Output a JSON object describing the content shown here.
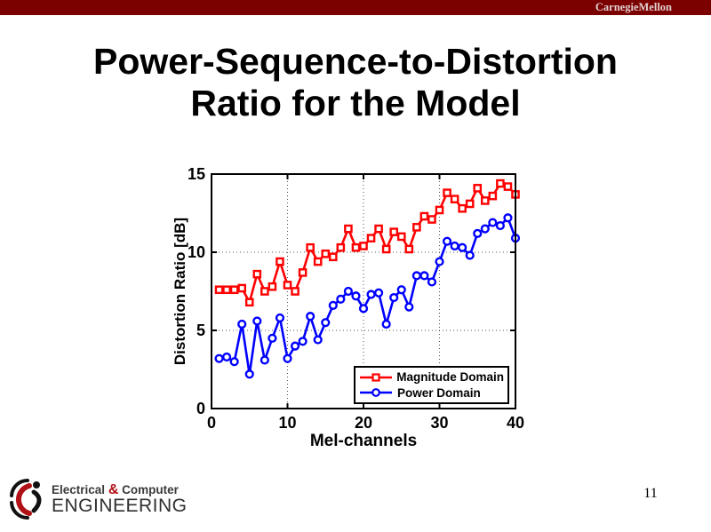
{
  "header": {
    "brand": "CarnegieMellon",
    "bar_color": "#7b0000"
  },
  "title": {
    "line1": "Power-Sequence-to-Distortion",
    "line2": "Ratio for the Model"
  },
  "footer": {
    "page_number": "11",
    "logo": {
      "word1": "Electrical",
      "amp": "&",
      "amp_color": "#b01116",
      "word2": "Computer",
      "line2": "ENGINEERING"
    }
  },
  "chart_data": {
    "type": "line",
    "title": "",
    "xlabel": "Mel-channels",
    "ylabel": "Distortion Ratio [dB]",
    "xlim": [
      0,
      40
    ],
    "ylim": [
      0,
      15
    ],
    "xticks": [
      0,
      10,
      20,
      30,
      40
    ],
    "yticks": [
      0,
      5,
      10,
      15
    ],
    "grid": true,
    "grid_style": "dotted",
    "legend_position": "lower right",
    "x": [
      1,
      2,
      3,
      4,
      5,
      6,
      7,
      8,
      9,
      10,
      11,
      12,
      13,
      14,
      15,
      16,
      17,
      18,
      19,
      20,
      21,
      22,
      23,
      24,
      25,
      26,
      27,
      28,
      29,
      30,
      31,
      32,
      33,
      34,
      35,
      36,
      37,
      38,
      39,
      40
    ],
    "series": [
      {
        "name": "Magnitude Domain",
        "color": "#ff0000",
        "marker": "square",
        "values": [
          7.6,
          7.6,
          7.6,
          7.7,
          6.8,
          8.6,
          7.5,
          7.8,
          9.4,
          7.9,
          7.5,
          8.7,
          10.3,
          9.4,
          9.9,
          9.7,
          10.3,
          11.5,
          10.3,
          10.4,
          10.9,
          11.5,
          10.2,
          11.3,
          11.0,
          10.2,
          11.6,
          12.3,
          12.1,
          12.7,
          13.8,
          13.4,
          12.8,
          13.1,
          14.1,
          13.3,
          13.6,
          14.4,
          14.2,
          13.7
        ]
      },
      {
        "name": "Power Domain",
        "color": "#0000ff",
        "marker": "circle",
        "values": [
          3.2,
          3.3,
          3.0,
          5.4,
          2.2,
          5.6,
          3.1,
          4.5,
          5.8,
          3.2,
          4.0,
          4.3,
          5.9,
          4.4,
          5.5,
          6.6,
          7.0,
          7.5,
          7.2,
          6.4,
          7.3,
          7.4,
          5.4,
          7.1,
          7.6,
          6.5,
          8.5,
          8.5,
          8.1,
          9.4,
          10.7,
          10.4,
          10.3,
          9.8,
          11.2,
          11.5,
          11.9,
          11.7,
          12.2,
          10.9
        ]
      }
    ]
  }
}
